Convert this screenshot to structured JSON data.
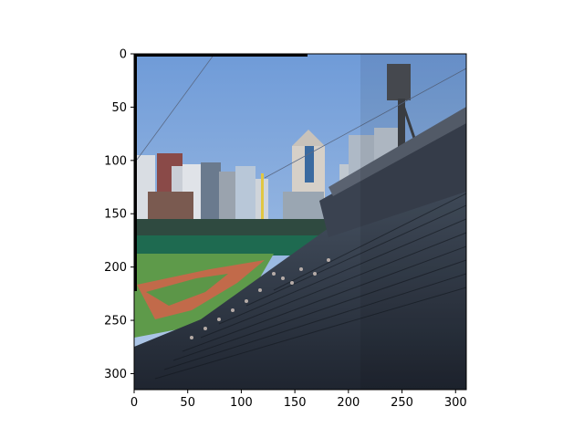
{
  "image_axes": {
    "x_ticks": [
      "0",
      "50",
      "100",
      "150",
      "200",
      "250",
      "300"
    ],
    "y_ticks": [
      "0",
      "50",
      "100",
      "150",
      "200",
      "250",
      "300"
    ],
    "x_range": [
      0,
      310
    ],
    "y_range": [
      0,
      315
    ],
    "description_colors": {
      "sky": "#7ea6dc",
      "field": "#5e9a4a",
      "infield_dirt": "#c26a4a",
      "seats": "#2a3442"
    }
  }
}
